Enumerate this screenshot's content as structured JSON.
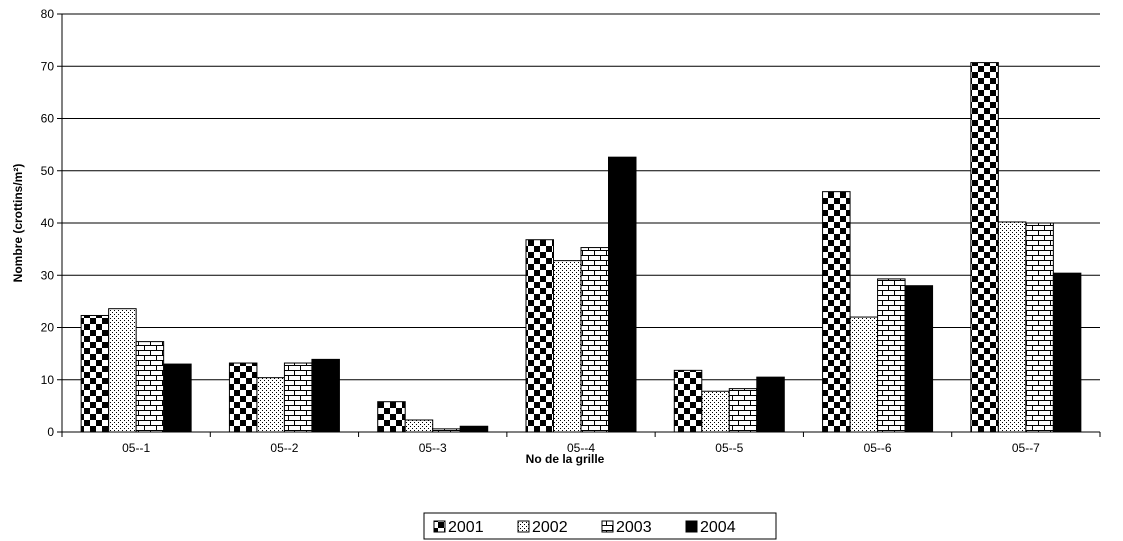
{
  "chart_data": {
    "type": "bar",
    "title": "",
    "xlabel": "No de la grille",
    "ylabel": "Nombre (crottins/m²)",
    "ylim": [
      0,
      80
    ],
    "yticks": [
      0,
      10,
      20,
      30,
      40,
      50,
      60,
      70,
      80
    ],
    "grid": "horizontal",
    "legend_position": "bottom",
    "categories": [
      "05--1",
      "05--2",
      "05--3",
      "05--4",
      "05--5",
      "05--6",
      "05--7"
    ],
    "series": [
      {
        "name": "2001",
        "pattern": "checker",
        "color": "#000000",
        "values": [
          22.3,
          13.2,
          5.8,
          36.8,
          11.8,
          46.0,
          70.7
        ]
      },
      {
        "name": "2002",
        "pattern": "dots",
        "color": "#000000",
        "values": [
          23.6,
          10.4,
          2.3,
          32.8,
          7.8,
          22.0,
          40.2
        ]
      },
      {
        "name": "2003",
        "pattern": "bricks",
        "color": "#000000",
        "values": [
          17.3,
          13.2,
          0.6,
          35.3,
          8.3,
          29.3,
          40.0
        ]
      },
      {
        "name": "2004",
        "pattern": "solid",
        "color": "#000000",
        "values": [
          13.0,
          13.9,
          1.1,
          52.6,
          10.5,
          28.0,
          30.4
        ]
      }
    ]
  }
}
